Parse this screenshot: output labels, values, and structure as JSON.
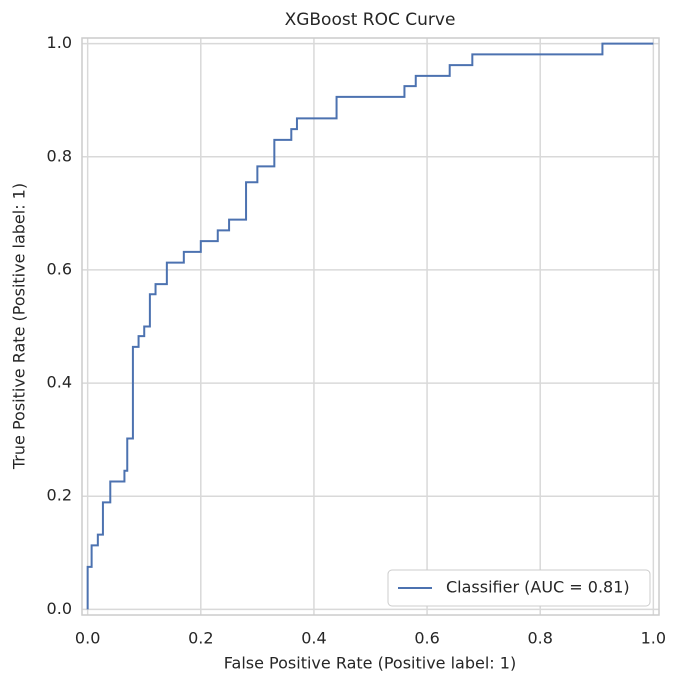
{
  "chart_data": {
    "type": "line",
    "title": "XGBoost ROC Curve",
    "xlabel": "False Positive Rate (Positive label: 1)",
    "ylabel": "True Positive Rate (Positive label: 1)",
    "xlim": [
      -0.01,
      1.01
    ],
    "ylim": [
      -0.01,
      1.01
    ],
    "xticks": [
      {
        "value": 0,
        "label": "0.0"
      },
      0.2,
      0.4,
      0.6,
      0.8,
      {
        "value": 1,
        "label": "1.0"
      }
    ],
    "yticks": [
      {
        "value": 0,
        "label": "0.0"
      },
      0.2,
      0.4,
      0.6,
      0.8,
      {
        "value": 1,
        "label": "1.0"
      }
    ],
    "grid": true,
    "legend": "lower right",
    "series": [
      {
        "name": "Classifier (AUC = 0.81)",
        "color": "#4c72b0",
        "x": [
          0,
          0,
          0.007,
          0.007,
          0.018,
          0.018,
          0.027,
          0.027,
          0.04,
          0.04,
          0.065,
          0.065,
          0.07,
          0.07,
          0.08,
          0.08,
          0.09,
          0.09,
          0.1,
          0.1,
          0.11,
          0.11,
          0.12,
          0.12,
          0.14,
          0.14,
          0.17,
          0.17,
          0.2,
          0.2,
          0.23,
          0.23,
          0.25,
          0.25,
          0.28,
          0.28,
          0.3,
          0.3,
          0.33,
          0.33,
          0.36,
          0.36,
          0.37,
          0.37,
          0.44,
          0.44,
          0.56,
          0.56,
          0.58,
          0.58,
          0.64,
          0.64,
          0.68,
          0.68,
          0.91,
          0.91,
          1
        ],
        "values": [
          0,
          0.075,
          0.075,
          0.113,
          0.113,
          0.132,
          0.132,
          0.189,
          0.189,
          0.226,
          0.226,
          0.245,
          0.245,
          0.302,
          0.302,
          0.464,
          0.464,
          0.483,
          0.483,
          0.5,
          0.5,
          0.557,
          0.557,
          0.575,
          0.575,
          0.613,
          0.613,
          0.632,
          0.632,
          0.651,
          0.651,
          0.67,
          0.67,
          0.689,
          0.689,
          0.755,
          0.755,
          0.783,
          0.783,
          0.83,
          0.83,
          0.849,
          0.849,
          0.868,
          0.868,
          0.906,
          0.906,
          0.925,
          0.925,
          0.943,
          0.943,
          0.962,
          0.962,
          0.981,
          0.981,
          1,
          1
        ]
      }
    ]
  }
}
